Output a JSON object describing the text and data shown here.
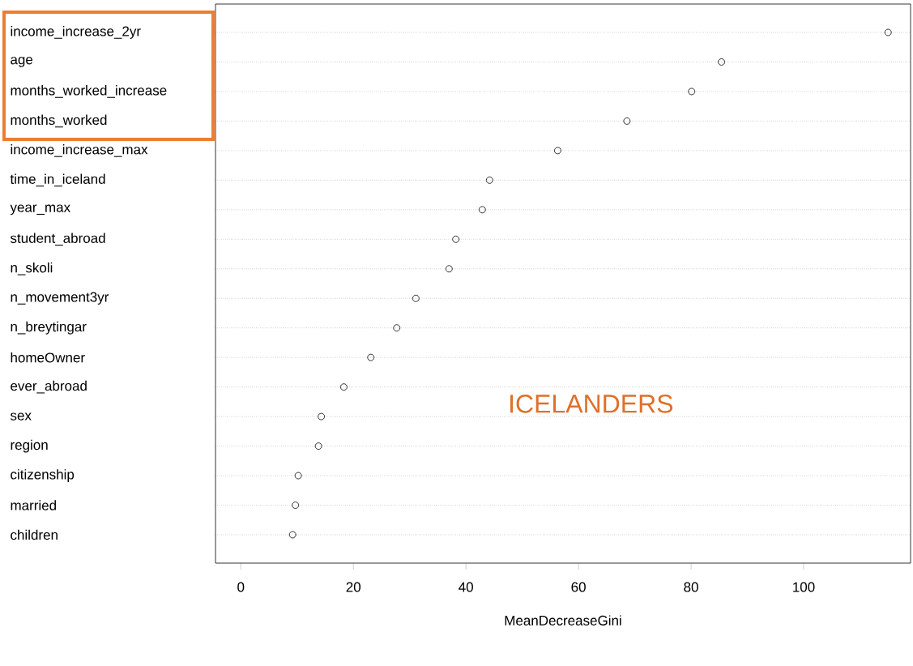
{
  "chart_data": {
    "type": "scatter",
    "orientation": "horizontal",
    "xlabel": "MeanDecreaseGini",
    "categories": [
      "income_increase_2yr",
      "age",
      "months_worked_increase",
      "months_worked",
      "income_increase_max",
      "time_in_iceland",
      "year_max",
      "student_abroad",
      "n_skoli",
      "n_movement3yr",
      "n_breytingar",
      "homeOwner",
      "ever_abroad",
      "sex",
      "region",
      "citizenship",
      "married",
      "children"
    ],
    "values": [
      115.0,
      85.4,
      80.1,
      68.6,
      56.3,
      44.2,
      42.9,
      38.2,
      37.0,
      31.1,
      27.7,
      23.1,
      18.3,
      14.3,
      13.8,
      10.2,
      9.7,
      9.2
    ],
    "color": "#000000",
    "marker": "circle",
    "grid": "y",
    "xlim": [
      -4.5,
      119
    ],
    "xticks": [
      0,
      20,
      40,
      60,
      80,
      100
    ],
    "annotations": [
      "ICELANDERS"
    ]
  }
}
